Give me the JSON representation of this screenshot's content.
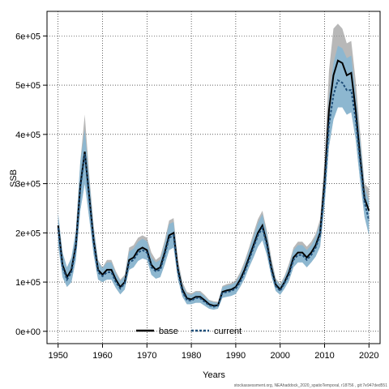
{
  "chart_data": {
    "type": "line",
    "xlabel": "Years",
    "ylabel": "SSB",
    "xlim": [
      1947.5,
      2022.5
    ],
    "ylim": [
      -25000,
      650000
    ],
    "xticks": [
      1950,
      1960,
      1970,
      1980,
      1990,
      2000,
      2010,
      2020
    ],
    "yticks": [
      0,
      100000,
      200000,
      300000,
      400000,
      500000,
      600000
    ],
    "ytick_labels": [
      "0e+00",
      "1e+05",
      "2e+05",
      "3e+05",
      "4e+05",
      "5e+05",
      "6e+05"
    ],
    "grid": true,
    "legend_position": "bottom",
    "x": [
      1950,
      1951,
      1952,
      1953,
      1954,
      1955,
      1956,
      1957,
      1958,
      1959,
      1960,
      1961,
      1962,
      1963,
      1964,
      1965,
      1966,
      1967,
      1968,
      1969,
      1970,
      1971,
      1972,
      1973,
      1974,
      1975,
      1976,
      1977,
      1978,
      1979,
      1980,
      1981,
      1982,
      1983,
      1984,
      1985,
      1986,
      1987,
      1988,
      1989,
      1990,
      1991,
      1992,
      1993,
      1994,
      1995,
      1996,
      1997,
      1998,
      1999,
      2000,
      2001,
      2002,
      2003,
      2004,
      2005,
      2006,
      2007,
      2008,
      2009,
      2010,
      2011,
      2012,
      2013,
      2014,
      2015,
      2016,
      2017,
      2018,
      2019,
      2020
    ],
    "series": [
      {
        "name": "base",
        "color": "#000000",
        "style": "solid",
        "band_color": "#9a9a9a",
        "values": [
          215000,
          135000,
          110000,
          125000,
          175000,
          295000,
          365000,
          275000,
          185000,
          125000,
          115000,
          125000,
          125000,
          105000,
          90000,
          100000,
          145000,
          150000,
          165000,
          170000,
          165000,
          135000,
          125000,
          130000,
          160000,
          195000,
          200000,
          125000,
          85000,
          67000,
          65000,
          70000,
          70000,
          63000,
          55000,
          52000,
          53000,
          80000,
          83000,
          85000,
          90000,
          105000,
          125000,
          150000,
          175000,
          200000,
          215000,
          180000,
          130000,
          95000,
          85000,
          100000,
          120000,
          150000,
          160000,
          160000,
          150000,
          160000,
          175000,
          200000,
          305000,
          450000,
          520000,
          550000,
          545000,
          520000,
          525000,
          450000,
          355000,
          270000,
          245000
        ],
        "lower": [
          175000,
          110000,
          90000,
          100000,
          145000,
          245000,
          300000,
          230000,
          155000,
          105000,
          100000,
          105000,
          105000,
          88000,
          75000,
          85000,
          125000,
          130000,
          143000,
          148000,
          145000,
          115000,
          107000,
          110000,
          135000,
          165000,
          170000,
          105000,
          70000,
          55000,
          55000,
          58000,
          58000,
          52000,
          46000,
          44000,
          46000,
          68000,
          70000,
          72000,
          76000,
          90000,
          107000,
          130000,
          150000,
          172000,
          185000,
          155000,
          112000,
          82000,
          74000,
          87000,
          103000,
          130000,
          140000,
          140000,
          130000,
          140000,
          152000,
          172000,
          255000,
          375000,
          430000,
          455000,
          455000,
          440000,
          445000,
          390000,
          305000,
          232000,
          195000
        ],
        "upper": [
          240000,
          160000,
          130000,
          150000,
          205000,
          345000,
          440000,
          320000,
          215000,
          145000,
          130000,
          145000,
          145000,
          122000,
          105000,
          115000,
          170000,
          175000,
          190000,
          195000,
          190000,
          160000,
          145000,
          152000,
          185000,
          225000,
          230000,
          145000,
          100000,
          80000,
          77000,
          82000,
          82000,
          74000,
          64000,
          61000,
          60000,
          92000,
          96000,
          98000,
          104000,
          120000,
          143000,
          170000,
          200000,
          228000,
          245000,
          205000,
          150000,
          108000,
          96000,
          113000,
          138000,
          170000,
          182000,
          182000,
          172000,
          182000,
          198000,
          228000,
          350000,
          530000,
          615000,
          625000,
          615000,
          585000,
          590000,
          510000,
          405000,
          300000,
          290000
        ]
      },
      {
        "name": "current",
        "color": "#1f4e79",
        "style": "dashed",
        "band_color": "#7fb7d8",
        "values": [
          210000,
          130000,
          105000,
          120000,
          170000,
          290000,
          360000,
          270000,
          180000,
          120000,
          112000,
          120000,
          120000,
          100000,
          87000,
          97000,
          140000,
          145000,
          160000,
          165000,
          160000,
          130000,
          122000,
          125000,
          155000,
          190000,
          195000,
          120000,
          80000,
          64000,
          62000,
          68000,
          67000,
          60000,
          53000,
          50000,
          52000,
          78000,
          80000,
          82000,
          87000,
          100000,
          120000,
          145000,
          170000,
          195000,
          210000,
          175000,
          125000,
          92000,
          82000,
          98000,
          115000,
          145000,
          155000,
          155000,
          145000,
          155000,
          170000,
          195000,
          290000,
          420000,
          480000,
          510000,
          505000,
          490000,
          490000,
          430000,
          345000,
          262000,
          225000
        ],
        "lower": [
          175000,
          110000,
          90000,
          100000,
          145000,
          245000,
          300000,
          230000,
          155000,
          105000,
          100000,
          105000,
          105000,
          88000,
          75000,
          85000,
          125000,
          130000,
          143000,
          148000,
          145000,
          115000,
          107000,
          110000,
          135000,
          165000,
          170000,
          105000,
          70000,
          55000,
          55000,
          58000,
          58000,
          52000,
          46000,
          44000,
          46000,
          68000,
          70000,
          72000,
          76000,
          90000,
          107000,
          130000,
          150000,
          172000,
          185000,
          155000,
          112000,
          82000,
          74000,
          87000,
          103000,
          130000,
          140000,
          140000,
          130000,
          140000,
          152000,
          172000,
          255000,
          375000,
          430000,
          455000,
          455000,
          440000,
          445000,
          390000,
          305000,
          232000,
          195000
        ],
        "upper": [
          240000,
          160000,
          130000,
          150000,
          205000,
          345000,
          410000,
          310000,
          210000,
          142000,
          128000,
          140000,
          140000,
          118000,
          102000,
          112000,
          162000,
          168000,
          182000,
          188000,
          183000,
          150000,
          140000,
          145000,
          178000,
          218000,
          222000,
          138000,
          95000,
          76000,
          74000,
          80000,
          79000,
          71000,
          62000,
          59000,
          58000,
          90000,
          93000,
          95000,
          100000,
          115000,
          137000,
          165000,
          192000,
          220000,
          238000,
          198000,
          143000,
          105000,
          93000,
          110000,
          132000,
          165000,
          175000,
          175000,
          165000,
          175000,
          192000,
          220000,
          330000,
          475000,
          545000,
          580000,
          575000,
          555000,
          560000,
          480000,
          390000,
          292000,
          265000
        ]
      }
    ]
  },
  "footnote": "stockassessment.org, NEAhaddock_2020_spatioTemporal, r18756 , git:7e947ded551"
}
